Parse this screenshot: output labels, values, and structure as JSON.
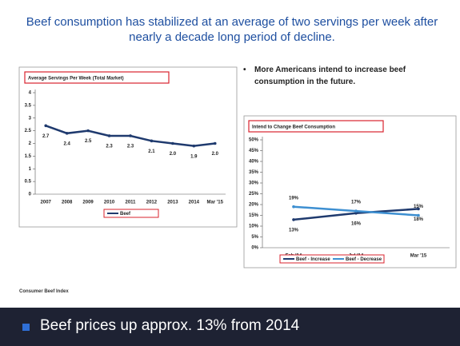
{
  "slide": {
    "headline": "Beef consumption has stabilized at an average of two servings per week after nearly a decade long period of decline.",
    "bullet": "More Americans intend to increase beef consumption in the future.",
    "source": "Consumer Beef Index",
    "banner": "Beef prices up approx. 13% from 2014"
  },
  "chart_data": [
    {
      "type": "line",
      "title": "Average Servings Per Week (Total Market)",
      "categories": [
        "2007",
        "2008",
        "2009",
        "2010",
        "2011",
        "2012",
        "2013",
        "2014",
        "Mar '15"
      ],
      "series": [
        {
          "name": "Beef",
          "color": "#1f3a6e",
          "values": [
            2.7,
            2.4,
            2.5,
            2.3,
            2.3,
            2.1,
            2.0,
            1.9,
            2.0
          ],
          "value_labels": [
            "2.7",
            "2.4",
            "2.5",
            "2.3",
            "2.3",
            "2.1",
            "2.0",
            "1.9",
            "2.0"
          ]
        }
      ],
      "ylim": [
        0,
        4
      ],
      "yticks": [
        0,
        0.5,
        1,
        1.5,
        2,
        2.5,
        3,
        3.5,
        4
      ]
    },
    {
      "type": "line",
      "title": "Intend to Change Beef Consumption",
      "categories": [
        "Feb '14",
        "Jul '14",
        "Mar '15"
      ],
      "series": [
        {
          "name": "Beef - Increase",
          "color": "#1f3a6e",
          "values": [
            13,
            16,
            18
          ],
          "value_labels": [
            "13%",
            "16%",
            "18%"
          ]
        },
        {
          "name": "Beef - Decrease",
          "color": "#3d8fd1",
          "values": [
            19,
            17,
            15
          ],
          "value_labels": [
            "19%",
            "17%",
            "15%"
          ]
        }
      ],
      "ylim": [
        0,
        50
      ],
      "yticks": [
        {
          "value": 0,
          "label": "0%"
        },
        {
          "value": 5,
          "label": "5%"
        },
        {
          "value": 10,
          "label": "10%"
        },
        {
          "value": 15,
          "label": "15%"
        },
        {
          "value": 20,
          "label": "20%"
        },
        {
          "value": 25,
          "label": "25%"
        },
        {
          "value": 30,
          "label": "30%"
        },
        {
          "value": 35,
          "label": "35%"
        },
        {
          "value": 40,
          "label": "40%"
        },
        {
          "value": 45,
          "label": "45%"
        },
        {
          "value": 50,
          "label": "50%"
        }
      ]
    }
  ]
}
